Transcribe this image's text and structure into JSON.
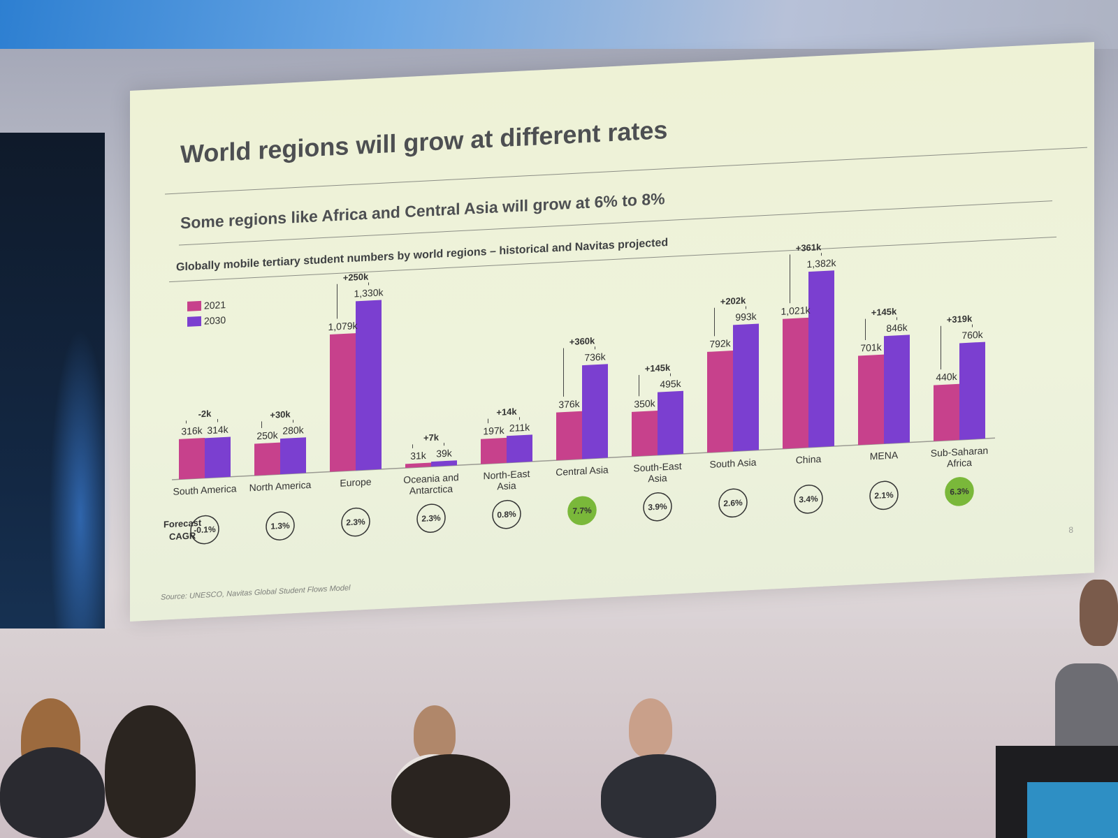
{
  "slide": {
    "title": "World regions will grow at different rates",
    "subtitle": "Some regions like Africa and Central Asia will grow at 6% to 8%",
    "chart_caption": "Globally mobile tertiary student numbers by world regions – historical and Navitas projected",
    "source": "Source: UNESCO, Navitas Global Student Flows Model",
    "page_number": "8",
    "cagr_label_line1": "Forecast",
    "cagr_label_line2": "CAGR"
  },
  "colors": {
    "series_2021": "#c7418c",
    "series_2030": "#7b3fd0",
    "highlight_cagr": "#7ab83a"
  },
  "chart_data": {
    "type": "bar",
    "categories": [
      "South America",
      "North America",
      "Europe",
      "Oceania and Antarctica",
      "North-East Asia",
      "Central Asia",
      "South-East Asia",
      "South Asia",
      "China",
      "MENA",
      "Sub-Saharan Africa"
    ],
    "series": [
      {
        "name": "2021",
        "values": [
          316,
          250,
          1079,
          31,
          197,
          376,
          350,
          792,
          1021,
          701,
          440
        ],
        "labels": [
          "316k",
          "250k",
          "1,079k",
          "31k",
          "197k",
          "376k",
          "350k",
          "792k",
          "1,021k",
          "701k",
          "440k"
        ]
      },
      {
        "name": "2030",
        "values": [
          314,
          280,
          1330,
          39,
          211,
          736,
          495,
          993,
          1382,
          846,
          760
        ],
        "labels": [
          "314k",
          "280k",
          "1,330k",
          "39k",
          "211k",
          "736k",
          "495k",
          "993k",
          "1,382k",
          "846k",
          "760k"
        ]
      }
    ],
    "changes": [
      "-2k",
      "+30k",
      "+250k",
      "+7k",
      "+14k",
      "+360k",
      "+145k",
      "+202k",
      "+361k",
      "+145k",
      "+319k"
    ],
    "cagr": [
      "-0.1%",
      "1.3%",
      "2.3%",
      "2.3%",
      "0.8%",
      "7.7%",
      "3.9%",
      "2.6%",
      "3.4%",
      "2.1%",
      "6.3%"
    ],
    "cagr_highlighted": [
      false,
      false,
      false,
      false,
      false,
      true,
      false,
      false,
      false,
      false,
      true
    ],
    "legend_position": "top-left",
    "ylim": [
      0,
      1400
    ],
    "title": "Globally mobile tertiary student numbers by world regions – historical and Navitas projected"
  }
}
